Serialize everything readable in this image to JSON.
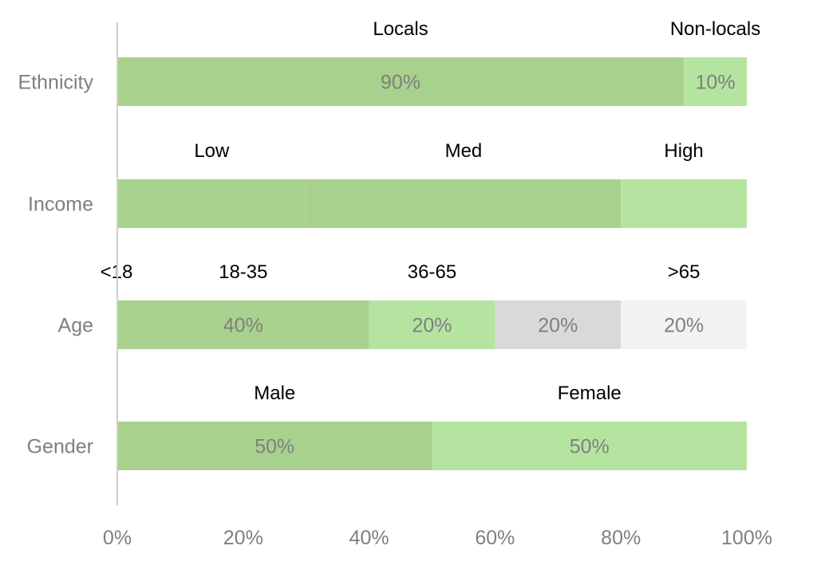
{
  "chart_data": {
    "type": "bar",
    "orientation": "horizontal",
    "stacked": true,
    "categories": [
      "Ethnicity",
      "Income",
      "Age",
      "Gender"
    ],
    "xlim": [
      0,
      100
    ],
    "x_ticks": [
      "0%",
      "20%",
      "40%",
      "60%",
      "80%",
      "100%"
    ],
    "grid": false,
    "colors": {
      "seg1": "#a9d18e",
      "seg2": "#b5e4a1",
      "seg3": "#d9d9d9",
      "seg4": "#f2f2f2",
      "axis": "#d0d0d0",
      "tick_text": "#7f7f7f",
      "category_text": "#7f7f7f",
      "value_text": "#7f7f7f",
      "segment_label_text": "#000000"
    },
    "bars": [
      {
        "category": "Ethnicity",
        "segments": [
          {
            "label": "Locals",
            "value": 90,
            "value_label": "90%",
            "color": "seg1"
          },
          {
            "label": "Non-locals",
            "value": 10,
            "value_label": "10%",
            "color": "seg2"
          }
        ]
      },
      {
        "category": "Income",
        "segments": [
          {
            "label": "Low",
            "value": 30,
            "value_label": "",
            "color": "seg1"
          },
          {
            "label": "Med",
            "value": 50,
            "value_label": "",
            "color": "seg1"
          },
          {
            "label": "High",
            "value": 20,
            "value_label": "",
            "color": "seg2"
          }
        ]
      },
      {
        "category": "Age",
        "segments": [
          {
            "label": "<18",
            "value": 0,
            "value_label": "",
            "color": "seg1"
          },
          {
            "label": "18-35",
            "value": 40,
            "value_label": "40%",
            "color": "seg1"
          },
          {
            "label": "36-65",
            "value": 20,
            "value_label": "20%",
            "color": "seg2"
          },
          {
            "label": "",
            "value": 20,
            "value_label": "20%",
            "color": "seg3"
          },
          {
            "label": ">65",
            "value": 20,
            "value_label": "20%",
            "color": "seg4"
          }
        ]
      },
      {
        "category": "Gender",
        "segments": [
          {
            "label": "Male",
            "value": 50,
            "value_label": "50%",
            "color": "seg1"
          },
          {
            "label": "Female",
            "value": 50,
            "value_label": "50%",
            "color": "seg2"
          }
        ]
      }
    ]
  }
}
